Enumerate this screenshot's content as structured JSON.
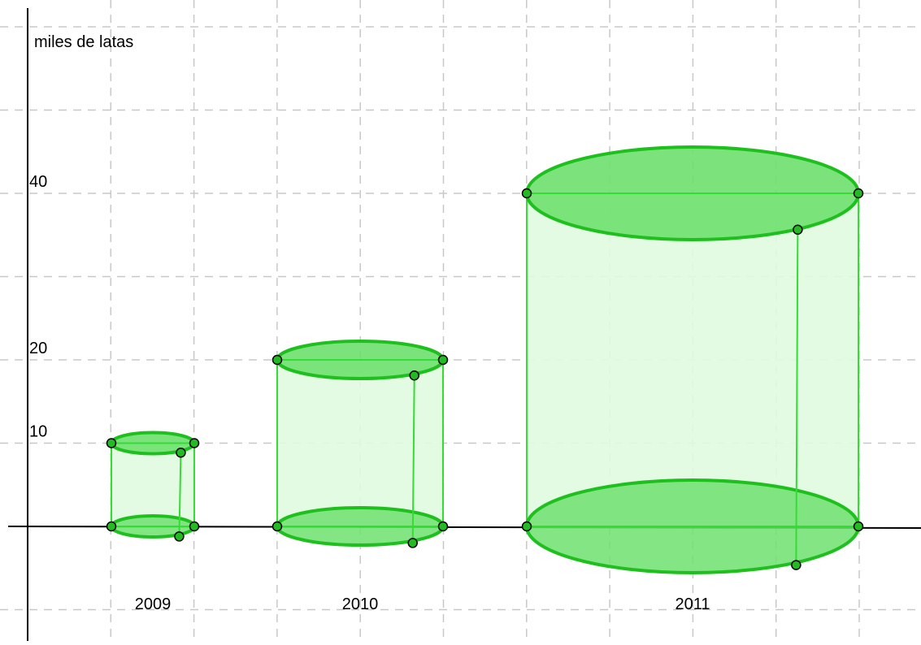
{
  "chart_data": {
    "type": "bar",
    "style": "3d-cylinder",
    "ylabel": "miles de latas",
    "y_tick_labels": [
      "10",
      "20",
      "40"
    ],
    "categories": [
      "2009",
      "2010",
      "2011"
    ],
    "values": [
      10,
      20,
      40
    ],
    "grid": true,
    "colors": {
      "fill_top": "#6ee06e",
      "fill_body": "#e0fbe0",
      "stroke": "#1ec01e",
      "edge": "#33dd33",
      "point": "#22bb22",
      "grid": "#c8c8c8",
      "axis": "#000000"
    }
  }
}
